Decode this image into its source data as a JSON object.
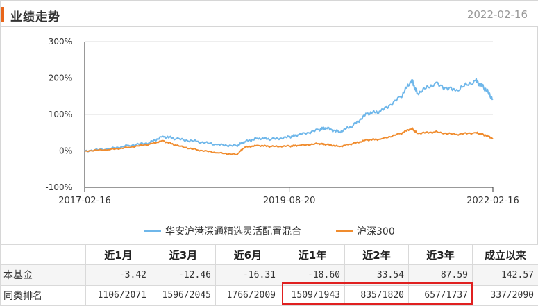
{
  "header": {
    "title": "业绩走势",
    "date": "2022-02-16"
  },
  "colors": {
    "fund": "#6fb7ea",
    "index": "#f08c2e",
    "accent": "#e8651a",
    "highlight": "#e02020"
  },
  "chart_data": {
    "type": "line",
    "x_ticks": [
      "2017-02-16",
      "2019-08-20",
      "2022-02-16"
    ],
    "ylim": [
      -100,
      300
    ],
    "y_ticks": [
      "300%",
      "200%",
      "100%",
      "0%",
      "-100%"
    ],
    "y_tick_values": [
      300,
      200,
      100,
      0,
      -100
    ],
    "legend_position": "bottom",
    "series": [
      {
        "name": "华安沪港深通精选灵活配置混合",
        "x": [
          "2017-02-16",
          "2017-06-01",
          "2017-09-01",
          "2017-12-01",
          "2018-02-01",
          "2018-04-01",
          "2018-07-01",
          "2018-10-01",
          "2018-12-28",
          "2019-02-01",
          "2019-04-01",
          "2019-06-01",
          "2019-08-20",
          "2019-10-01",
          "2019-12-31",
          "2020-02-01",
          "2020-04-01",
          "2020-06-01",
          "2020-08-01",
          "2020-10-01",
          "2020-12-31",
          "2021-02-18",
          "2021-03-15",
          "2021-06-01",
          "2021-09-01",
          "2021-12-01",
          "2022-01-05",
          "2022-02-16"
        ],
        "values": [
          0,
          5,
          15,
          22,
          40,
          33,
          26,
          17,
          14,
          25,
          35,
          32,
          38,
          44,
          58,
          63,
          52,
          70,
          102,
          108,
          148,
          195,
          158,
          185,
          165,
          193,
          175,
          143
        ]
      },
      {
        "name": "沪深300",
        "x": [
          "2017-02-16",
          "2017-06-01",
          "2017-09-01",
          "2017-12-01",
          "2018-02-01",
          "2018-04-01",
          "2018-07-01",
          "2018-10-01",
          "2018-12-28",
          "2019-02-01",
          "2019-04-01",
          "2019-06-01",
          "2019-08-20",
          "2019-10-01",
          "2019-12-31",
          "2020-02-01",
          "2020-04-01",
          "2020-06-01",
          "2020-08-01",
          "2020-10-01",
          "2020-12-31",
          "2021-02-18",
          "2021-03-15",
          "2021-06-01",
          "2021-09-01",
          "2021-12-01",
          "2022-01-05",
          "2022-02-16"
        ],
        "values": [
          0,
          3,
          10,
          18,
          28,
          15,
          3,
          -5,
          -10,
          10,
          15,
          12,
          13,
          15,
          20,
          18,
          12,
          20,
          30,
          32,
          48,
          62,
          48,
          52,
          45,
          50,
          45,
          35
        ]
      }
    ]
  },
  "table": {
    "headers": [
      "",
      "近1月",
      "近3月",
      "近6月",
      "近1年",
      "近2年",
      "近3年",
      "成立以来"
    ],
    "rows": [
      {
        "label": "本基金",
        "values": [
          "-3.42",
          "-12.46",
          "-16.31",
          "-18.60",
          "33.54",
          "87.59",
          "142.57"
        ]
      },
      {
        "label": "同类排名",
        "values": [
          "1106/2071",
          "1596/2045",
          "1766/2009",
          "1509/1943",
          "835/1820",
          "657/1737",
          "337/2090"
        ]
      }
    ]
  }
}
